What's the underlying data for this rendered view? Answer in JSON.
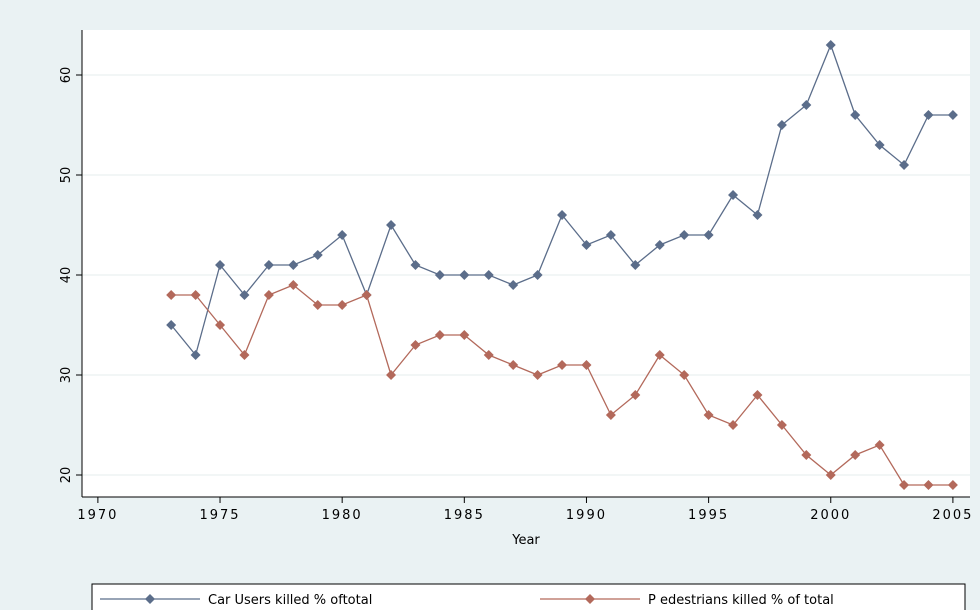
{
  "chart_data": {
    "type": "line",
    "xlabel": "Year",
    "x": [
      1973,
      1974,
      1975,
      1976,
      1977,
      1978,
      1979,
      1980,
      1981,
      1982,
      1983,
      1984,
      1985,
      1986,
      1987,
      1988,
      1989,
      1990,
      1991,
      1992,
      1993,
      1994,
      1995,
      1996,
      1997,
      1998,
      1999,
      2000,
      2001,
      2002,
      2003,
      2004,
      2005
    ],
    "series": [
      {
        "name": "Car Users killed % oftotal",
        "color": "#5b6d8a",
        "values": [
          35,
          32,
          41,
          38,
          41,
          41,
          42,
          44,
          38,
          45,
          41,
          40,
          40,
          40,
          39,
          40,
          46,
          43,
          44,
          41,
          43,
          44,
          44,
          48,
          46,
          55,
          57,
          63,
          56,
          53,
          51,
          56,
          56
        ]
      },
      {
        "name": "P edestrians  killed % of total",
        "color": "#b3695b",
        "values": [
          38,
          38,
          35,
          32,
          38,
          39,
          37,
          37,
          38,
          30,
          33,
          34,
          34,
          32,
          31,
          30,
          31,
          31,
          26,
          28,
          32,
          30,
          26,
          25,
          28,
          25,
          22,
          20,
          22,
          23,
          19,
          19,
          19
        ]
      }
    ],
    "xlim": [
      1969.35,
      2005.7
    ],
    "xticks": [
      1970,
      1975,
      1980,
      1985,
      1990,
      1995,
      2000,
      2005
    ],
    "ylim": [
      17.8,
      64.5
    ],
    "yticks": [
      20,
      30,
      40,
      50,
      60
    ],
    "grid": true,
    "legend": "bottom"
  }
}
